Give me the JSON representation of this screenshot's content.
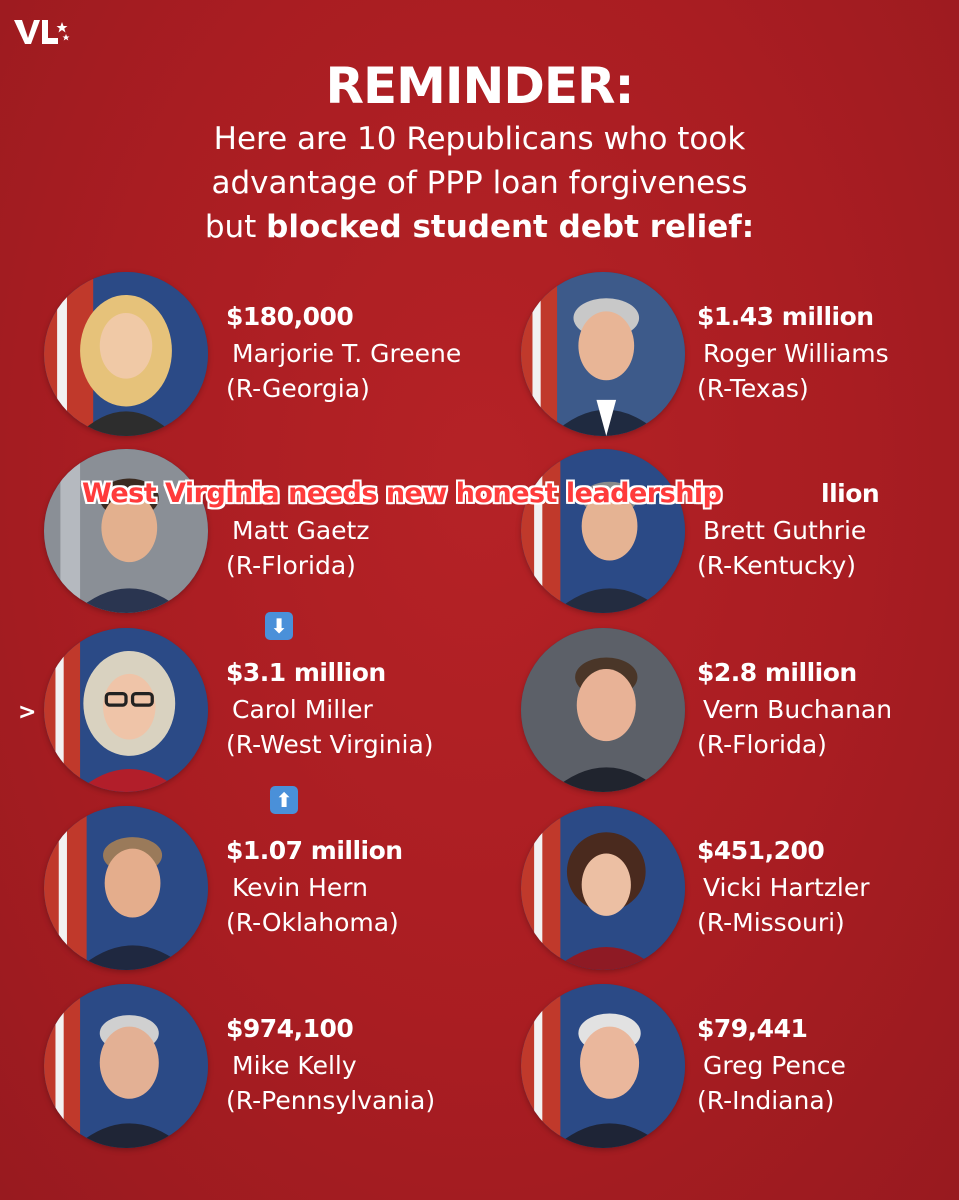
{
  "header": {
    "title": "REMINDER:",
    "line1": "Here are 10 Republicans who took",
    "line2": "advantage of PPP loan forgiveness",
    "line3_prefix": "but ",
    "line3_bold": "blocked student debt relief:"
  },
  "overlay_text": "West Virginia needs new honest leadership",
  "pointer_glyph": ">",
  "arrow_down": "⬇",
  "arrow_up": "⬆",
  "cards": [
    {
      "amount": "$180,000",
      "name": "Marjorie T. Greene",
      "party": "(R-Georgia)"
    },
    {
      "amount": "$1.43 million",
      "name": "Roger Williams",
      "party": "(R-Texas)"
    },
    {
      "amount": "",
      "name": "Matt Gaetz",
      "party": "(R-Florida)"
    },
    {
      "amount": "llion",
      "name": "Brett Guthrie",
      "party": "(R-Kentucky)"
    },
    {
      "amount": "$3.1 million",
      "name": "Carol Miller",
      "party": "(R-West Virginia)"
    },
    {
      "amount": "$2.8 million",
      "name": "Vern Buchanan",
      "party": "(R-Florida)"
    },
    {
      "amount": "$1.07 million",
      "name": "Kevin Hern",
      "party": "(R-Oklahoma)"
    },
    {
      "amount": "$451,200",
      "name": "Vicki Hartzler",
      "party": "(R-Missouri)"
    },
    {
      "amount": "$974,100",
      "name": "Mike Kelly",
      "party": "(R-Pennsylvania)"
    },
    {
      "amount": "$79,441",
      "name": "Greg Pence",
      "party": "(R-Indiana)"
    }
  ],
  "colors": {
    "background": "#a91d22",
    "overlay_text": "#ff3b3b",
    "arrow_badge": "#4a90d9"
  }
}
